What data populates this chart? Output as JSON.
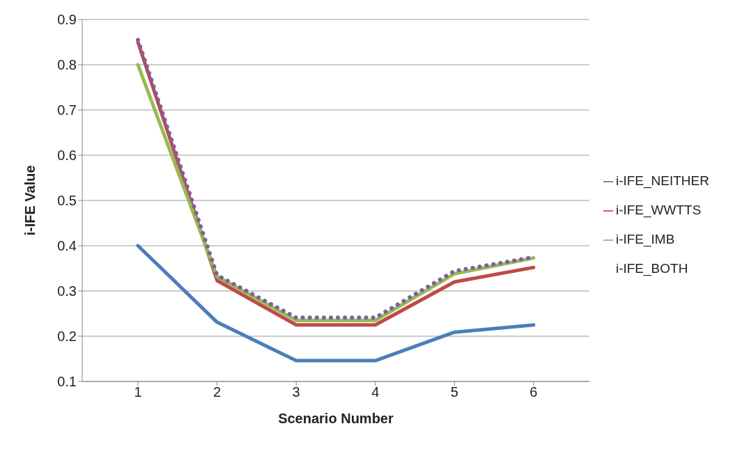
{
  "chart_data": {
    "type": "line",
    "xlabel": "Scenario Number",
    "ylabel": "i-IFE Value",
    "categories": [
      "1",
      "2",
      "3",
      "4",
      "5",
      "6"
    ],
    "series": [
      {
        "name": "i-IFE_NEITHER",
        "color": "#4a7ebb",
        "values": [
          0.4,
          0.231,
          0.146,
          0.146,
          0.209,
          0.225
        ]
      },
      {
        "name": "i-IFE_WWTTS",
        "color": "#be4b48",
        "values": [
          0.85,
          0.323,
          0.225,
          0.225,
          0.32,
          0.352
        ]
      },
      {
        "name": "i-IFE_IMB",
        "color": "#98b954",
        "values": [
          0.8,
          0.332,
          0.235,
          0.235,
          0.338,
          0.373
        ]
      },
      {
        "name": "i-IFE_BOTH",
        "color": "#7d5fa0",
        "values": [
          0.855,
          0.335,
          0.241,
          0.241,
          0.344,
          0.375
        ],
        "line_style": "dotted"
      }
    ],
    "ylim": [
      0.1,
      0.9
    ],
    "yticks": [
      0.1,
      0.2,
      0.3,
      0.4,
      0.5,
      0.6,
      0.7,
      0.8,
      0.9
    ],
    "grid": "y",
    "legend": "right",
    "marker": "none",
    "line_style": "solid"
  }
}
